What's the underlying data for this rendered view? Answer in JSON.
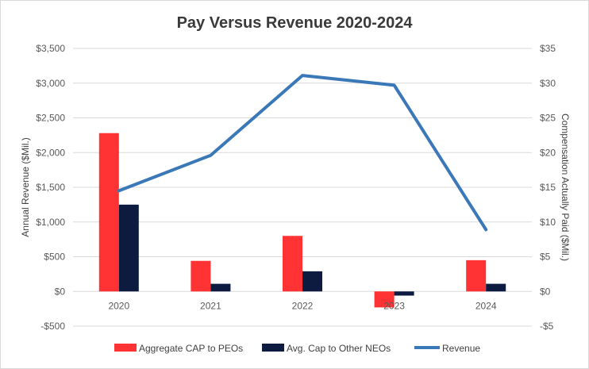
{
  "chart_data": {
    "type": "bar+line",
    "title": "Pay Versus Revenue 2020-2024",
    "categories": [
      "2020",
      "2021",
      "2022",
      "2023",
      "2024"
    ],
    "left_axis": {
      "label": "Annual Revenue ($Mil.)",
      "ylim": [
        -500,
        3500
      ],
      "ticks": [
        -500,
        0,
        500,
        1000,
        1500,
        2000,
        2500,
        3000,
        3500
      ],
      "tick_labels": [
        "-$500",
        "$0",
        "$500",
        "$1,000",
        "$1,500",
        "$2,000",
        "$2,500",
        "$3,000",
        "$3,500"
      ]
    },
    "right_axis": {
      "label": "Compensation Actually Paid ($Mil.)",
      "ylim": [
        -5,
        35
      ],
      "ticks": [
        -5,
        0,
        5,
        10,
        15,
        20,
        25,
        30,
        35
      ],
      "tick_labels": [
        "-$5",
        "$0",
        "$5",
        "$10",
        "$15",
        "$20",
        "$25",
        "$30",
        "$35"
      ]
    },
    "series": [
      {
        "name": "Aggregate CAP to PEOs",
        "type": "bar",
        "axis": "right",
        "color": "#ff3333",
        "values": [
          22.8,
          4.4,
          8.0,
          -2.3,
          4.5
        ]
      },
      {
        "name": "Avg. Cap to Other NEOs",
        "type": "bar",
        "axis": "right",
        "color": "#0d1b40",
        "values": [
          12.5,
          1.1,
          2.9,
          -0.6,
          1.1
        ]
      },
      {
        "name": "Revenue",
        "type": "line",
        "axis": "left",
        "color": "#3a78b8",
        "values": [
          1450,
          1960,
          3110,
          2970,
          890
        ]
      }
    ],
    "gridlines": true,
    "legend_position": "bottom"
  }
}
